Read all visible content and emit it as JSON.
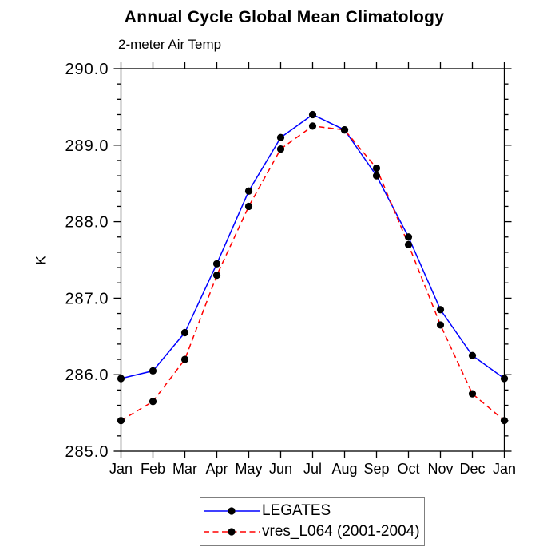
{
  "page": {
    "background": "#ffffff",
    "text_color": "#000000"
  },
  "chart_data": {
    "type": "line",
    "title": "Annual Cycle Global Mean Climatology",
    "subtitle": "2-meter Air Temp",
    "xlabel": "",
    "ylabel": "K",
    "categories": [
      "Jan",
      "Feb",
      "Mar",
      "Apr",
      "May",
      "Jun",
      "Jul",
      "Aug",
      "Sep",
      "Oct",
      "Nov",
      "Dec",
      "Jan"
    ],
    "ylim": [
      285.0,
      290.0
    ],
    "ytick_major": 1.0,
    "ytick_minor": 0.2,
    "ytick_labels": [
      "285.0",
      "286.0",
      "287.0",
      "288.0",
      "289.0",
      "290.0"
    ],
    "grid": false,
    "legend_position": "bottom-center",
    "frame_color": "#000000",
    "marker": "filled-circle",
    "marker_color": "#000000",
    "series": [
      {
        "name": "LEGATES",
        "color": "#0000ff",
        "style": "solid",
        "values": [
          285.95,
          286.05,
          286.55,
          287.45,
          288.4,
          289.1,
          289.4,
          289.2,
          288.6,
          287.8,
          286.85,
          286.25,
          285.95
        ]
      },
      {
        "name": "vres_L064 (2001-2004)",
        "color": "#ff0000",
        "style": "dashed",
        "values": [
          285.4,
          285.65,
          286.2,
          287.3,
          288.2,
          288.95,
          289.25,
          289.2,
          288.7,
          287.7,
          286.65,
          285.75,
          285.4
        ]
      }
    ]
  }
}
